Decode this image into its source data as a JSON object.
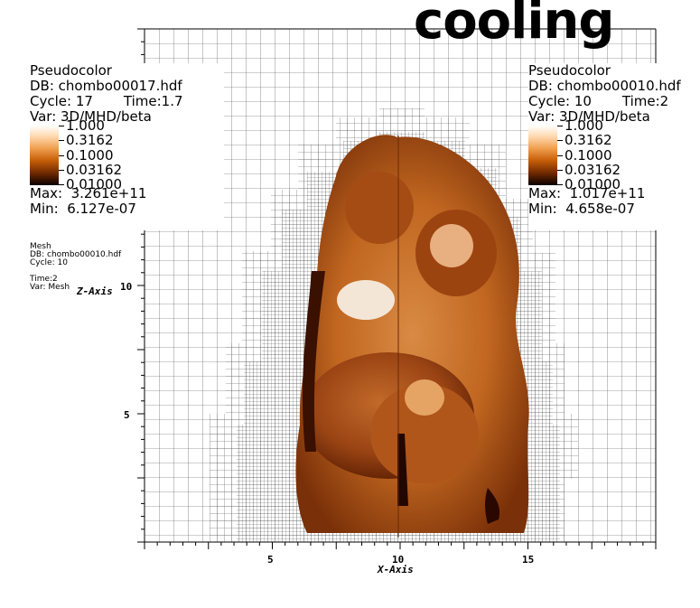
{
  "title": "cooling",
  "legend_left": {
    "plot_type": "Pseudocolor",
    "db": "DB: chombo00017.hdf",
    "cycle": "Cycle: 17",
    "time": "Time:1.7",
    "var": "Var: 3D/MHD/beta",
    "max": "Max:  3.261e+11",
    "min": "Min:  6.127e-07"
  },
  "legend_right": {
    "plot_type": "Pseudocolor",
    "db": "DB: chombo00010.hdf",
    "cycle": "Cycle: 10",
    "time": "Time:2",
    "var": "Var: 3D/MHD/beta",
    "max": "Max:  1.017e+11",
    "min": "Min:  4.658e-07"
  },
  "colorbar_labels": [
    "1.000",
    "0.3162",
    "0.1000",
    "0.03162",
    "0.01000"
  ],
  "mesh_legend": {
    "plot_type": "Mesh",
    "db": "DB: chombo00010.hdf",
    "cycle": "Cycle: 10",
    "time": "Time:2",
    "var": "Var: Mesh"
  },
  "axes": {
    "x_title": "X-Axis",
    "y_title": "Z-Axis",
    "x_ticks": [
      "5",
      "10",
      "15"
    ],
    "y_ticks": [
      "5",
      "10"
    ]
  },
  "colors": {
    "mesh": "#555555",
    "plasma_light": "#e89a50",
    "plasma_mid": "#c46a1e",
    "plasma_dark": "#5a1e02"
  }
}
